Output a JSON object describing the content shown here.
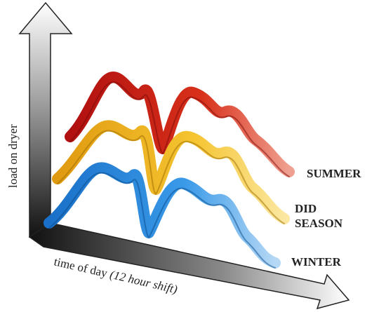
{
  "axes": {
    "y_label": "load on dryer",
    "x_label": "time of day",
    "x_label_note": "(12 hour shift)"
  },
  "ribbons": [
    {
      "label_lines": [
        "SUMMER"
      ]
    },
    {
      "label_lines": [
        "DID",
        "SEASON"
      ]
    },
    {
      "label_lines": [
        "WINTER"
      ]
    }
  ]
}
